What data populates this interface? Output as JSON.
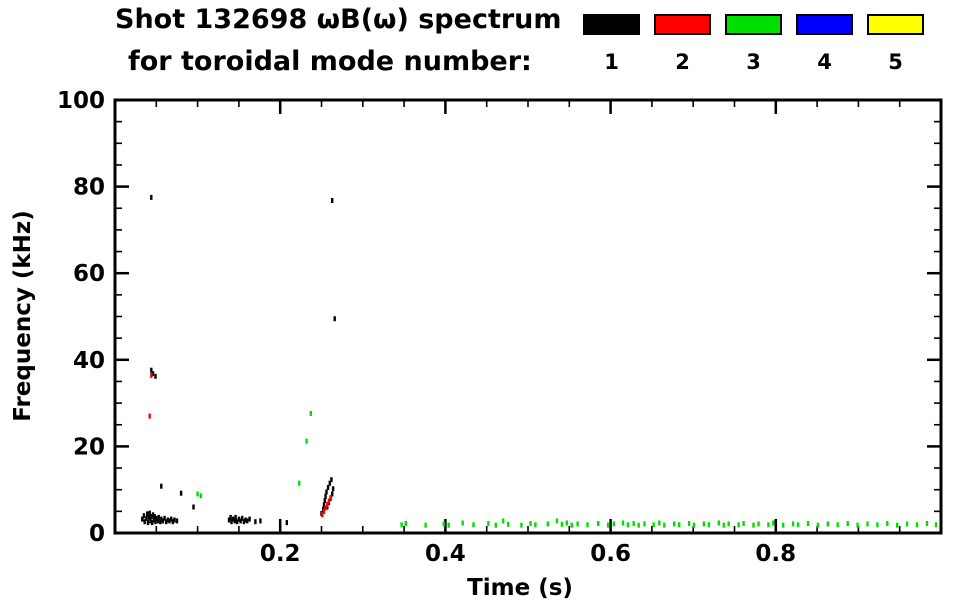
{
  "chart_data": {
    "type": "scatter",
    "title": "Shot 132698 ωB(ω) spectrum for toroidal mode number:",
    "title_line1": "Shot 132698 ωB(ω) spectrum",
    "title_line2": "for toroidal mode number:",
    "xlabel": "Time (s)",
    "ylabel": "Frequency (kHz)",
    "xlim": [
      0,
      1.0
    ],
    "ylim": [
      0,
      100
    ],
    "x_ticks": [
      0.2,
      0.4,
      0.6,
      0.8
    ],
    "x_tick_labels": [
      "0.2",
      "0.4",
      "0.6",
      "0.8"
    ],
    "y_ticks": [
      0,
      20,
      40,
      60,
      80,
      100
    ],
    "x_minor_step": 0.05,
    "y_minor_step": 5,
    "grid": false,
    "legend_position": "top-right",
    "series": [
      {
        "name": "mode-1",
        "label": "1",
        "color": "#000000",
        "points": [
          [
            0.033,
            3.2
          ],
          [
            0.035,
            4.0
          ],
          [
            0.036,
            2.6
          ],
          [
            0.038,
            3.4
          ],
          [
            0.039,
            4.4
          ],
          [
            0.04,
            2.4
          ],
          [
            0.041,
            3.6
          ],
          [
            0.042,
            4.6
          ],
          [
            0.043,
            2.8
          ],
          [
            0.044,
            3.8
          ],
          [
            0.045,
            2.4
          ],
          [
            0.046,
            4.2
          ],
          [
            0.047,
            3.0
          ],
          [
            0.048,
            3.8
          ],
          [
            0.049,
            2.6
          ],
          [
            0.05,
            3.4
          ],
          [
            0.052,
            2.8
          ],
          [
            0.053,
            3.6
          ],
          [
            0.055,
            2.6
          ],
          [
            0.056,
            3.2
          ],
          [
            0.058,
            2.8
          ],
          [
            0.06,
            3.4
          ],
          [
            0.062,
            2.6
          ],
          [
            0.064,
            3.0
          ],
          [
            0.066,
            2.8
          ],
          [
            0.068,
            3.2
          ],
          [
            0.07,
            2.6
          ],
          [
            0.072,
            3.0
          ],
          [
            0.075,
            2.8
          ],
          [
            0.044,
            77.5
          ],
          [
            0.044,
            37.6
          ],
          [
            0.046,
            36.8
          ],
          [
            0.049,
            36.2
          ],
          [
            0.056,
            10.8
          ],
          [
            0.08,
            9.2
          ],
          [
            0.095,
            6.0
          ],
          [
            0.138,
            3.0
          ],
          [
            0.14,
            3.6
          ],
          [
            0.141,
            2.6
          ],
          [
            0.143,
            3.2
          ],
          [
            0.145,
            2.8
          ],
          [
            0.146,
            3.6
          ],
          [
            0.148,
            2.6
          ],
          [
            0.15,
            3.2
          ],
          [
            0.152,
            2.8
          ],
          [
            0.154,
            3.4
          ],
          [
            0.156,
            2.6
          ],
          [
            0.158,
            3.0
          ],
          [
            0.16,
            2.8
          ],
          [
            0.163,
            3.2
          ],
          [
            0.17,
            2.6
          ],
          [
            0.176,
            2.8
          ],
          [
            0.208,
            2.4
          ],
          [
            0.25,
            4.5
          ],
          [
            0.252,
            5.5
          ],
          [
            0.253,
            6.5
          ],
          [
            0.254,
            7.5
          ],
          [
            0.255,
            8.5
          ],
          [
            0.256,
            9.5
          ],
          [
            0.257,
            6.0
          ],
          [
            0.258,
            10.5
          ],
          [
            0.259,
            7.0
          ],
          [
            0.26,
            11.5
          ],
          [
            0.261,
            8.0
          ],
          [
            0.262,
            12.3
          ],
          [
            0.263,
            9.0
          ],
          [
            0.264,
            10.2
          ],
          [
            0.263,
            76.8
          ],
          [
            0.266,
            49.5
          ]
        ]
      },
      {
        "name": "mode-2",
        "label": "2",
        "color": "#ff0000",
        "points": [
          [
            0.042,
            27.0
          ],
          [
            0.044,
            36.4
          ],
          [
            0.251,
            4.2
          ],
          [
            0.253,
            5.0
          ],
          [
            0.255,
            5.8
          ],
          [
            0.257,
            6.6
          ],
          [
            0.259,
            7.4
          ],
          [
            0.261,
            8.2
          ]
        ]
      },
      {
        "name": "mode-3",
        "label": "3",
        "color": "#00e000",
        "points": [
          [
            0.1,
            9.0
          ],
          [
            0.104,
            8.6
          ],
          [
            0.223,
            11.5
          ],
          [
            0.232,
            21.2
          ],
          [
            0.237,
            27.6
          ],
          [
            0.347,
            1.9
          ],
          [
            0.352,
            2.2
          ],
          [
            0.376,
            1.8
          ],
          [
            0.398,
            2.1
          ],
          [
            0.404,
            1.8
          ],
          [
            0.421,
            2.3
          ],
          [
            0.434,
            1.9
          ],
          [
            0.452,
            2.2
          ],
          [
            0.461,
            1.8
          ],
          [
            0.47,
            2.8
          ],
          [
            0.476,
            2.0
          ],
          [
            0.492,
            1.8
          ],
          [
            0.503,
            2.2
          ],
          [
            0.509,
            1.9
          ],
          [
            0.524,
            2.1
          ],
          [
            0.535,
            2.8
          ],
          [
            0.541,
            2.0
          ],
          [
            0.547,
            2.3
          ],
          [
            0.553,
            1.8
          ],
          [
            0.56,
            2.1
          ],
          [
            0.572,
            1.9
          ],
          [
            0.585,
            2.2
          ],
          [
            0.597,
            1.8
          ],
          [
            0.604,
            2.1
          ],
          [
            0.615,
            2.3
          ],
          [
            0.621,
            1.9
          ],
          [
            0.628,
            2.2
          ],
          [
            0.634,
            1.8
          ],
          [
            0.641,
            2.1
          ],
          [
            0.652,
            1.9
          ],
          [
            0.659,
            2.3
          ],
          [
            0.665,
            1.8
          ],
          [
            0.677,
            2.1
          ],
          [
            0.683,
            1.9
          ],
          [
            0.695,
            2.2
          ],
          [
            0.701,
            1.8
          ],
          [
            0.713,
            2.1
          ],
          [
            0.719,
            1.9
          ],
          [
            0.731,
            2.3
          ],
          [
            0.737,
            1.8
          ],
          [
            0.743,
            2.1
          ],
          [
            0.755,
            1.9
          ],
          [
            0.761,
            2.2
          ],
          [
            0.773,
            1.8
          ],
          [
            0.779,
            2.1
          ],
          [
            0.791,
            1.9
          ],
          [
            0.797,
            2.3
          ],
          [
            0.809,
            1.8
          ],
          [
            0.821,
            2.1
          ],
          [
            0.827,
            1.9
          ],
          [
            0.839,
            2.2
          ],
          [
            0.851,
            1.8
          ],
          [
            0.863,
            2.1
          ],
          [
            0.875,
            1.9
          ],
          [
            0.887,
            2.2
          ],
          [
            0.899,
            1.8
          ],
          [
            0.911,
            2.1
          ],
          [
            0.923,
            1.9
          ],
          [
            0.935,
            2.2
          ],
          [
            0.947,
            1.8
          ],
          [
            0.959,
            2.1
          ],
          [
            0.971,
            1.9
          ],
          [
            0.983,
            2.2
          ],
          [
            0.994,
            1.9
          ]
        ]
      },
      {
        "name": "mode-4",
        "label": "4",
        "color": "#0000ff",
        "points": []
      },
      {
        "name": "mode-5",
        "label": "5",
        "color": "#ffff00",
        "points": []
      }
    ]
  }
}
